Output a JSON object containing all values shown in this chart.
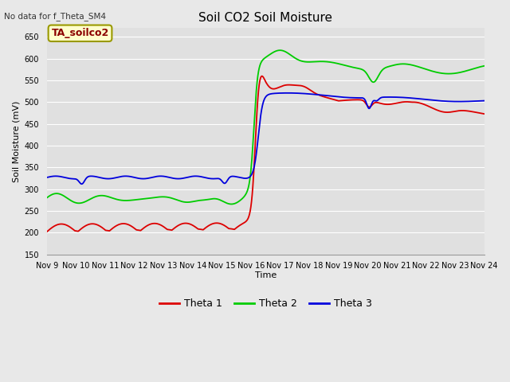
{
  "title": "Soil CO2 Soil Moisture",
  "no_data_text": "No data for f_Theta_SM4",
  "legend_box_text": "TA_soilco2",
  "ylabel": "Soil Moisture (mV)",
  "xlabel": "Time",
  "ylim": [
    150,
    670
  ],
  "yticks": [
    150,
    200,
    250,
    300,
    350,
    400,
    450,
    500,
    550,
    600,
    650
  ],
  "xlim": [
    0,
    15
  ],
  "xtick_labels": [
    "Nov 9",
    "Nov 10",
    "Nov 11",
    "Nov 12",
    "Nov 13",
    "Nov 14",
    "Nov 15",
    "Nov 16",
    "Nov 17",
    "Nov 18",
    "Nov 19",
    "Nov 20",
    "Nov 21",
    "Nov 22",
    "Nov 23",
    "Nov 24"
  ],
  "line_colors": {
    "theta1": "#dd0000",
    "theta2": "#00cc00",
    "theta3": "#0000dd"
  },
  "legend_entries": [
    "Theta 1",
    "Theta 2",
    "Theta 3"
  ],
  "bg_color": "#e8e8e8",
  "plot_bg_color": "#e0e0e0",
  "grid_color": "#ffffff",
  "title_fontsize": 11,
  "label_fontsize": 8,
  "tick_fontsize": 7
}
